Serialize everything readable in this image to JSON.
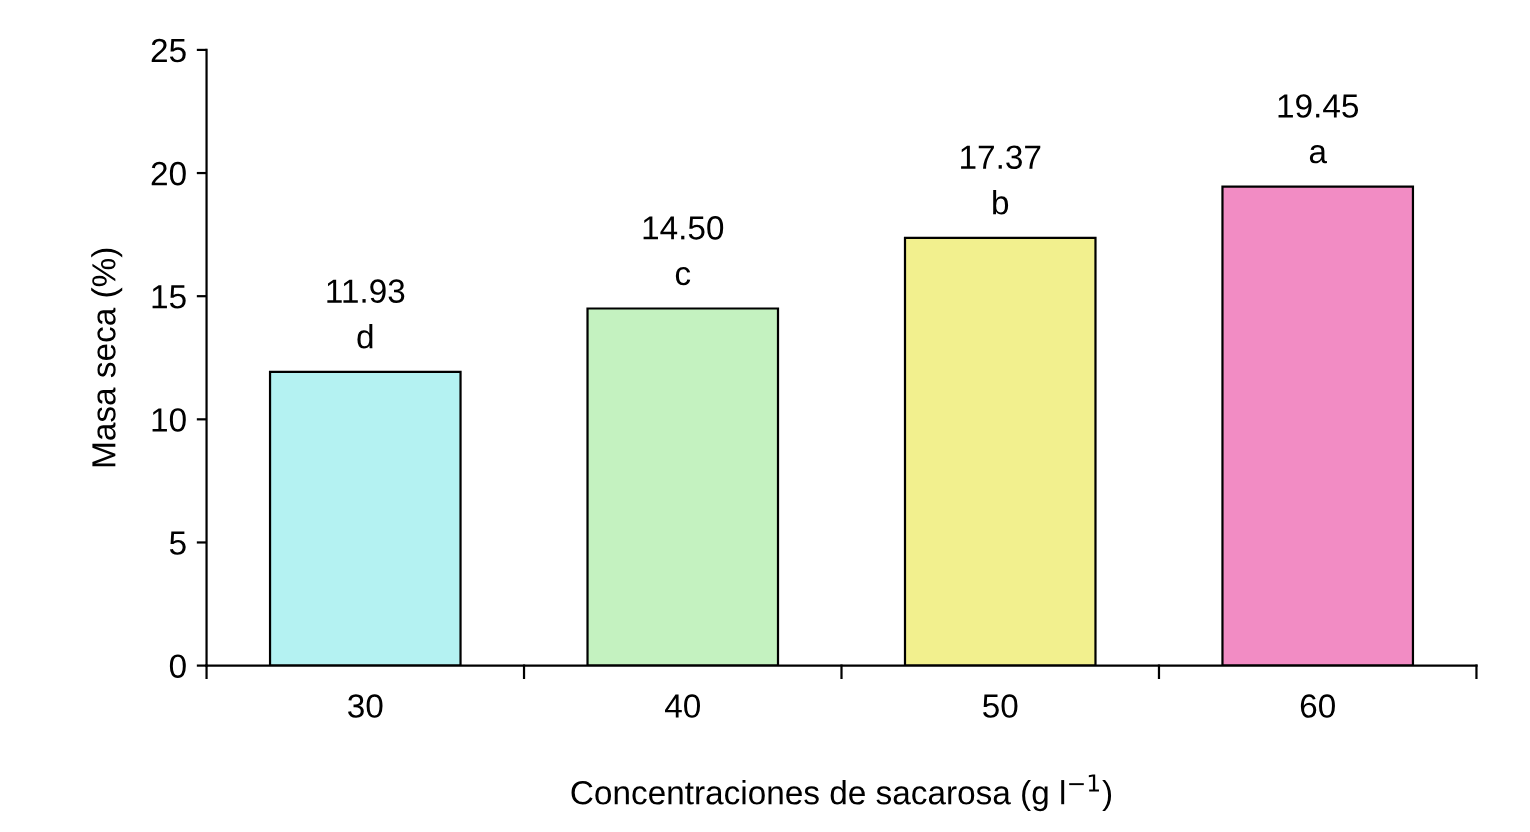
{
  "chart_data": {
    "type": "bar",
    "xlabel": "Concentraciones de sacarosa (g l$^{−1}$)",
    "ylabel": "Masa seca (%)",
    "categories": [
      "30",
      "40",
      "50",
      "60"
    ],
    "values": [
      11.93,
      14.5,
      17.37,
      19.45
    ],
    "colors": [
      "#b4f2f2",
      "#c4f2c0",
      "#f2f08e",
      "#f28cc4"
    ],
    "value_labels": [
      "11.93\nd",
      "14.50\nc",
      "17.37\nb",
      "19.45\na"
    ],
    "ylim": [
      0,
      25
    ],
    "yticks": [
      0,
      5,
      10,
      15,
      20,
      25
    ],
    "grid": false,
    "legend": false
  }
}
